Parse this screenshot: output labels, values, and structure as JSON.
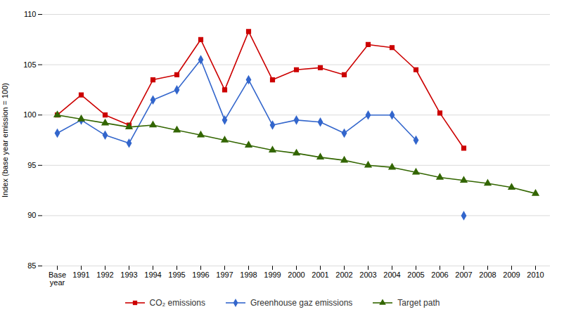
{
  "chart_data": {
    "type": "line",
    "categories": [
      "Base\nyear",
      "1991",
      "1992",
      "1993",
      "1994",
      "1995",
      "1996",
      "1997",
      "1998",
      "1999",
      "2000",
      "2001",
      "2002",
      "2003",
      "2004",
      "2005",
      "2006",
      "2007",
      "2008",
      "2009",
      "2010"
    ],
    "series": [
      {
        "name": "CO₂ emissions",
        "color": "#cc0000",
        "marker": "square",
        "values": [
          100,
          102,
          100,
          99,
          103.5,
          104,
          107.5,
          102.5,
          108.3,
          103.5,
          104.5,
          104.7,
          104,
          107,
          106.7,
          104.5,
          100.2,
          96.7,
          null,
          null,
          null
        ]
      },
      {
        "name": "Greenhouse gaz emissions",
        "color": "#3366cc",
        "marker": "diamond",
        "values": [
          98.2,
          99.5,
          98,
          97.2,
          101.5,
          102.5,
          105.5,
          99.5,
          103.5,
          99,
          99.5,
          99.3,
          98.2,
          100,
          100,
          97.5,
          null,
          90,
          null,
          null,
          null
        ]
      },
      {
        "name": "Target path",
        "color": "#336600",
        "marker": "triangle",
        "values": [
          100,
          99.6,
          99.2,
          98.8,
          99.0,
          98.5,
          98.0,
          97.5,
          97.0,
          96.5,
          96.2,
          95.8,
          95.5,
          95.0,
          94.8,
          94.3,
          93.8,
          93.5,
          93.2,
          92.8,
          92.2
        ]
      }
    ],
    "ylabel": "Index (base year emission = 100)",
    "ylim": [
      85,
      110
    ],
    "yticks": [
      85,
      90,
      95,
      100,
      105,
      110
    ],
    "grid": true,
    "legend": "bottom"
  }
}
